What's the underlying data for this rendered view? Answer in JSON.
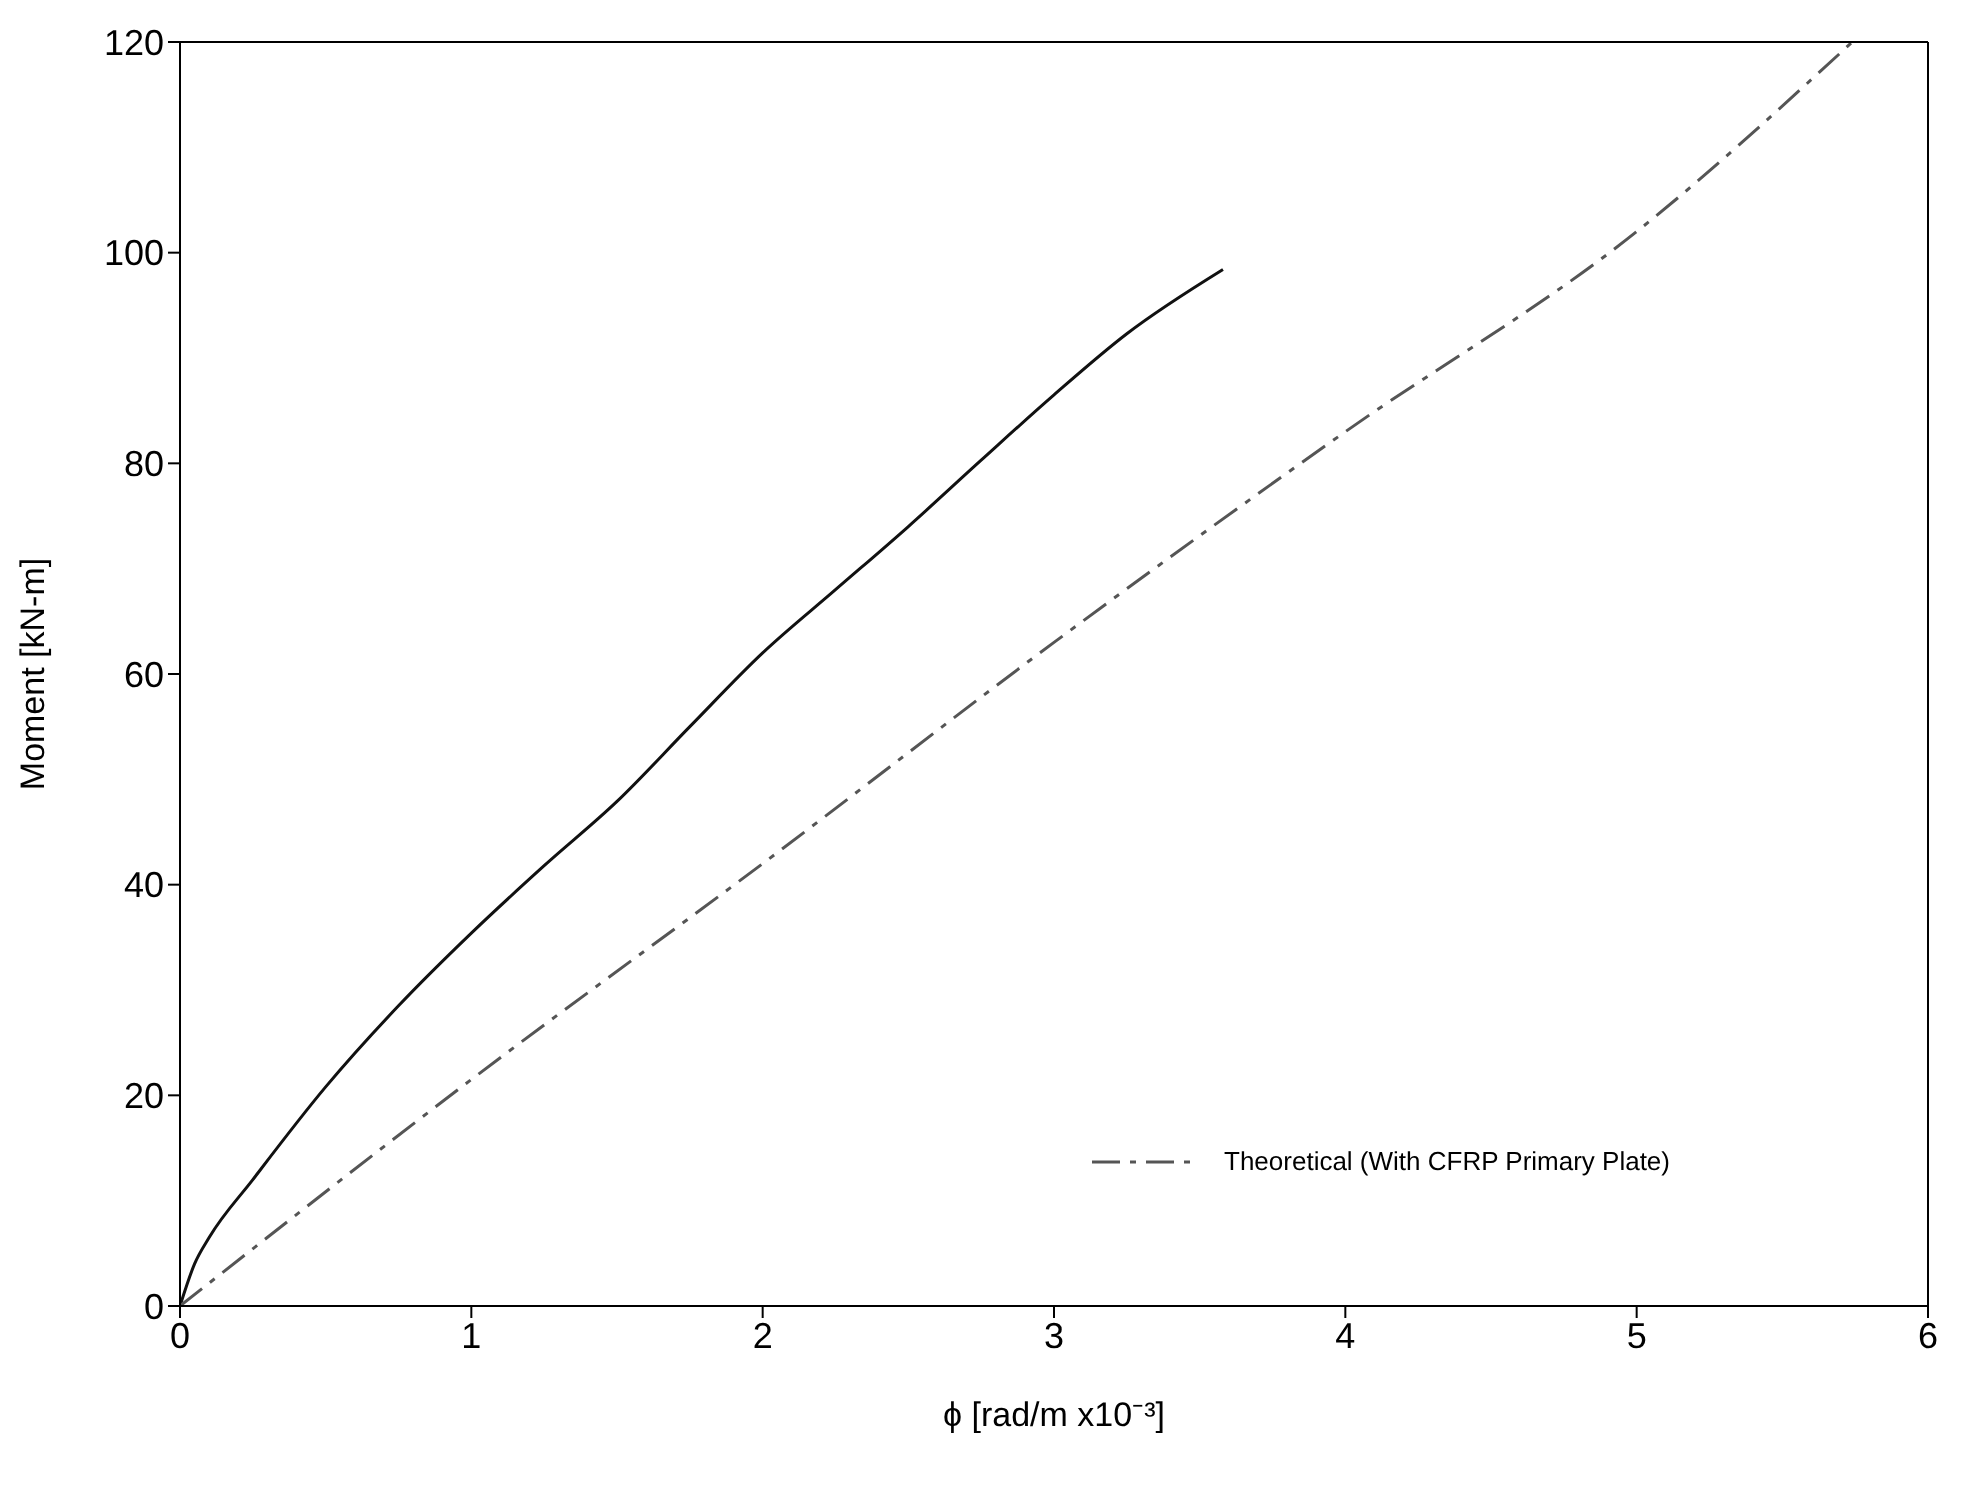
{
  "chart_data": {
    "type": "line",
    "xlabel": "ϕ     [rad/m x10⁻³]",
    "ylabel": "Moment [kN-m]",
    "xlim": [
      0,
      6
    ],
    "xticks": [
      0,
      1,
      2,
      3,
      4,
      5,
      6
    ],
    "ylim": [
      0,
      120
    ],
    "yticks": [
      0,
      20,
      40,
      60,
      80,
      100,
      120
    ],
    "legend": "bottom right",
    "marker": "none",
    "series": [
      {
        "color": "#111111",
        "line_style": "solid",
        "x": [
          0,
          0.05,
          0.1,
          0.25,
          0.5,
          0.75,
          1,
          1.25,
          1.5,
          1.75,
          2,
          2.25,
          2.5,
          2.75,
          3,
          3.25,
          3.58
        ],
        "values": [
          0,
          4,
          6.5,
          12,
          20.8,
          28.5,
          35.4,
          41.8,
          47.9,
          55,
          62,
          68,
          74,
          80.3,
          86.5,
          92.3,
          98.4
        ]
      },
      {
        "name": "Theoretical (With CFRP Primary Plate)",
        "color": "#555555",
        "line_style": "dashdot",
        "x": [
          0,
          1,
          2,
          3,
          4,
          5,
          5.74
        ],
        "values": [
          0,
          21.5,
          42,
          63,
          83,
          102,
          120
        ]
      }
    ]
  }
}
